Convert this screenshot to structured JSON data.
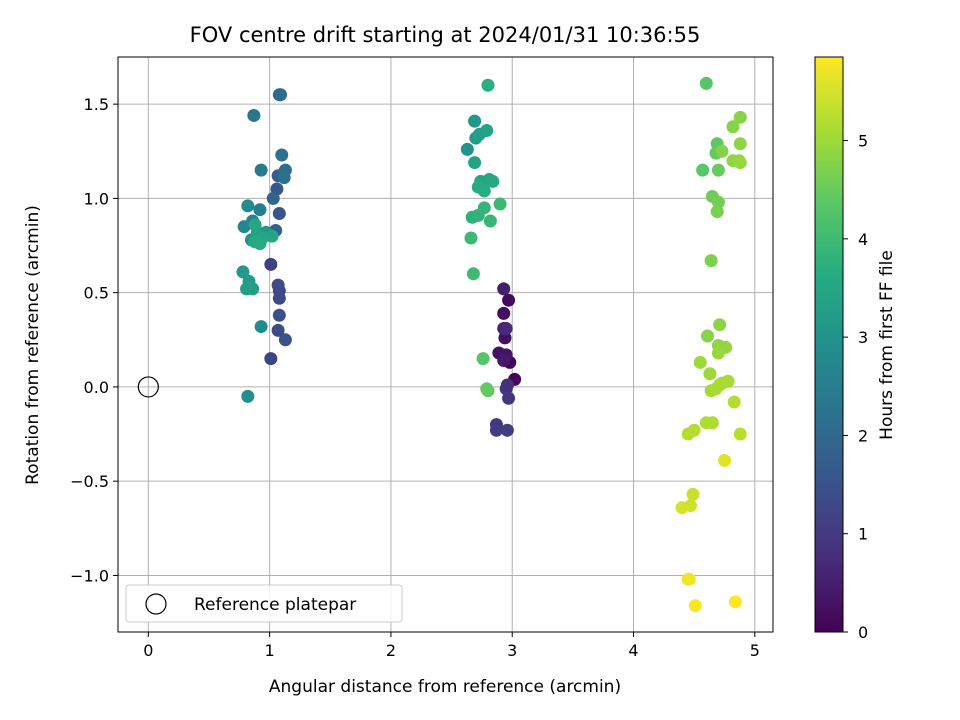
{
  "chart_data": {
    "type": "scatter",
    "title": "FOV centre drift starting at 2024/01/31 10:36:55",
    "xlabel": "Angular distance from reference (arcmin)",
    "ylabel": "Rotation from reference (arcmin)",
    "xlim": [
      -0.25,
      5.15
    ],
    "ylim": [
      -1.3,
      1.75
    ],
    "xticks": [
      0,
      1,
      2,
      3,
      4,
      5
    ],
    "yticks": [
      -1.0,
      -0.5,
      0.0,
      0.5,
      1.0,
      1.5
    ],
    "xtick_labels": [
      "0",
      "1",
      "2",
      "3",
      "4",
      "5"
    ],
    "ytick_labels": [
      "−1.0",
      "−0.5",
      "0.0",
      "0.5",
      "1.0",
      "1.5"
    ],
    "grid": true,
    "legend": {
      "position": "lower-left",
      "entries": [
        "Reference platepar"
      ]
    },
    "reference_point": {
      "x": 0,
      "y": 0
    },
    "colorbar": {
      "label": "Hours from first FF file",
      "range": [
        0,
        5.85
      ],
      "ticks": [
        0,
        1,
        2,
        3,
        4,
        5
      ],
      "tick_labels": [
        "0",
        "1",
        "2",
        "3",
        "4",
        "5"
      ],
      "colormap": "viridis"
    },
    "points": [
      {
        "x": 2.98,
        "y": 0.13,
        "h": 0.05
      },
      {
        "x": 3.02,
        "y": 0.04,
        "h": 0.1
      },
      {
        "x": 2.97,
        "y": 0.46,
        "h": 0.15
      },
      {
        "x": 2.93,
        "y": 0.39,
        "h": 0.2
      },
      {
        "x": 2.94,
        "y": 0.26,
        "h": 0.25
      },
      {
        "x": 2.89,
        "y": 0.18,
        "h": 0.3
      },
      {
        "x": 2.95,
        "y": 0.17,
        "h": 0.35
      },
      {
        "x": 2.93,
        "y": 0.14,
        "h": 0.4
      },
      {
        "x": 2.93,
        "y": 0.52,
        "h": 0.5
      },
      {
        "x": 2.93,
        "y": 0.31,
        "h": 0.6
      },
      {
        "x": 2.95,
        "y": 0.31,
        "h": 0.7
      },
      {
        "x": 2.96,
        "y": 0.01,
        "h": 0.8
      },
      {
        "x": 2.95,
        "y": -0.01,
        "h": 0.85
      },
      {
        "x": 2.97,
        "y": -0.06,
        "h": 0.9
      },
      {
        "x": 2.87,
        "y": -0.2,
        "h": 0.95
      },
      {
        "x": 2.87,
        "y": -0.23,
        "h": 1.0
      },
      {
        "x": 2.96,
        "y": -0.23,
        "h": 1.05
      },
      {
        "x": 1.01,
        "y": 0.65,
        "h": 1.15
      },
      {
        "x": 1.01,
        "y": 0.15,
        "h": 1.2
      },
      {
        "x": 1.08,
        "y": 0.51,
        "h": 1.25
      },
      {
        "x": 1.08,
        "y": 0.47,
        "h": 1.3
      },
      {
        "x": 1.07,
        "y": 0.54,
        "h": 1.35
      },
      {
        "x": 1.07,
        "y": 0.3,
        "h": 1.4
      },
      {
        "x": 1.08,
        "y": 0.38,
        "h": 1.45
      },
      {
        "x": 1.13,
        "y": 0.25,
        "h": 1.5
      },
      {
        "x": 1.08,
        "y": 0.92,
        "h": 1.55
      },
      {
        "x": 1.06,
        "y": 1.05,
        "h": 1.6
      },
      {
        "x": 1.07,
        "y": 1.12,
        "h": 1.7
      },
      {
        "x": 1.05,
        "y": 0.83,
        "h": 1.8
      },
      {
        "x": 1.03,
        "y": 1.0,
        "h": 1.9
      },
      {
        "x": 1.08,
        "y": 1.55,
        "h": 2.0
      },
      {
        "x": 1.09,
        "y": 1.55,
        "h": 2.05
      },
      {
        "x": 1.13,
        "y": 1.15,
        "h": 2.1
      },
      {
        "x": 1.12,
        "y": 1.11,
        "h": 2.15
      },
      {
        "x": 1.1,
        "y": 1.23,
        "h": 2.2
      },
      {
        "x": 0.87,
        "y": 1.44,
        "h": 2.3
      },
      {
        "x": 0.93,
        "y": 1.15,
        "h": 2.4
      },
      {
        "x": 0.92,
        "y": 0.94,
        "h": 2.5
      },
      {
        "x": 0.86,
        "y": 0.88,
        "h": 2.6
      },
      {
        "x": 0.79,
        "y": 0.85,
        "h": 2.7
      },
      {
        "x": 0.82,
        "y": 0.96,
        "h": 2.8
      },
      {
        "x": 0.93,
        "y": 0.32,
        "h": 2.85
      },
      {
        "x": 0.82,
        "y": -0.05,
        "h": 2.9
      },
      {
        "x": 0.85,
        "y": 0.78,
        "h": 3.0
      },
      {
        "x": 0.9,
        "y": 0.82,
        "h": 3.05
      },
      {
        "x": 0.97,
        "y": 0.82,
        "h": 3.1
      },
      {
        "x": 0.78,
        "y": 0.61,
        "h": 3.15
      },
      {
        "x": 0.83,
        "y": 0.56,
        "h": 3.2
      },
      {
        "x": 0.81,
        "y": 0.52,
        "h": 3.25
      },
      {
        "x": 0.86,
        "y": 0.52,
        "h": 3.3
      },
      {
        "x": 0.9,
        "y": 0.8,
        "h": 3.35
      },
      {
        "x": 1.02,
        "y": 0.8,
        "h": 3.4
      },
      {
        "x": 0.88,
        "y": 0.86,
        "h": 3.45
      },
      {
        "x": 0.94,
        "y": 0.79,
        "h": 3.5
      },
      {
        "x": 0.88,
        "y": 0.77,
        "h": 3.55
      },
      {
        "x": 0.92,
        "y": 0.76,
        "h": 3.6
      },
      {
        "x": 2.63,
        "y": 1.26,
        "h": 3.0
      },
      {
        "x": 2.69,
        "y": 1.41,
        "h": 3.1
      },
      {
        "x": 2.7,
        "y": 1.32,
        "h": 3.2
      },
      {
        "x": 2.73,
        "y": 1.34,
        "h": 3.3
      },
      {
        "x": 2.79,
        "y": 1.36,
        "h": 3.35
      },
      {
        "x": 2.69,
        "y": 1.19,
        "h": 3.4
      },
      {
        "x": 2.74,
        "y": 1.09,
        "h": 3.45
      },
      {
        "x": 2.81,
        "y": 1.1,
        "h": 3.5
      },
      {
        "x": 2.84,
        "y": 1.09,
        "h": 3.55
      },
      {
        "x": 2.72,
        "y": 1.06,
        "h": 3.6
      },
      {
        "x": 2.77,
        "y": 1.04,
        "h": 3.65
      },
      {
        "x": 2.8,
        "y": 1.6,
        "h": 3.7
      },
      {
        "x": 2.67,
        "y": 0.9,
        "h": 3.75
      },
      {
        "x": 2.72,
        "y": 0.91,
        "h": 3.8
      },
      {
        "x": 2.77,
        "y": 0.95,
        "h": 3.85
      },
      {
        "x": 2.82,
        "y": 0.88,
        "h": 3.9
      },
      {
        "x": 2.9,
        "y": 0.97,
        "h": 3.95
      },
      {
        "x": 2.66,
        "y": 0.79,
        "h": 3.95
      },
      {
        "x": 2.68,
        "y": 0.6,
        "h": 4.0
      },
      {
        "x": 2.76,
        "y": 0.15,
        "h": 4.3
      },
      {
        "x": 2.8,
        "y": -0.02,
        "h": 4.4
      },
      {
        "x": 2.79,
        "y": -0.01,
        "h": 4.45
      },
      {
        "x": 4.6,
        "y": 1.61,
        "h": 4.3
      },
      {
        "x": 4.57,
        "y": 1.15,
        "h": 4.35
      },
      {
        "x": 4.69,
        "y": 1.29,
        "h": 4.4
      },
      {
        "x": 4.68,
        "y": 1.24,
        "h": 4.45
      },
      {
        "x": 4.7,
        "y": 1.15,
        "h": 4.5
      },
      {
        "x": 4.65,
        "y": 1.01,
        "h": 4.55
      },
      {
        "x": 4.7,
        "y": 0.98,
        "h": 4.6
      },
      {
        "x": 4.69,
        "y": 0.93,
        "h": 4.65
      },
      {
        "x": 4.64,
        "y": 0.67,
        "h": 4.7
      },
      {
        "x": 4.73,
        "y": 1.25,
        "h": 4.75
      },
      {
        "x": 4.82,
        "y": 1.38,
        "h": 4.8
      },
      {
        "x": 4.88,
        "y": 1.43,
        "h": 4.8
      },
      {
        "x": 4.88,
        "y": 1.29,
        "h": 4.85
      },
      {
        "x": 4.82,
        "y": 1.2,
        "h": 4.85
      },
      {
        "x": 4.87,
        "y": 1.2,
        "h": 4.9
      },
      {
        "x": 4.88,
        "y": 1.19,
        "h": 4.95
      },
      {
        "x": 4.61,
        "y": 0.27,
        "h": 4.8
      },
      {
        "x": 4.71,
        "y": 0.33,
        "h": 4.85
      },
      {
        "x": 4.7,
        "y": 0.22,
        "h": 4.9
      },
      {
        "x": 4.76,
        "y": 0.21,
        "h": 4.9
      },
      {
        "x": 4.7,
        "y": 0.18,
        "h": 4.95
      },
      {
        "x": 4.55,
        "y": 0.13,
        "h": 5.0
      },
      {
        "x": 4.63,
        "y": 0.07,
        "h": 5.0
      },
      {
        "x": 4.71,
        "y": 0.01,
        "h": 5.05
      },
      {
        "x": 4.64,
        "y": -0.02,
        "h": 5.05
      },
      {
        "x": 4.73,
        "y": 0.02,
        "h": 5.1
      },
      {
        "x": 4.78,
        "y": 0.03,
        "h": 5.1
      },
      {
        "x": 4.68,
        "y": -0.01,
        "h": 5.1
      },
      {
        "x": 4.6,
        "y": -0.19,
        "h": 5.15
      },
      {
        "x": 4.65,
        "y": -0.19,
        "h": 5.15
      },
      {
        "x": 4.5,
        "y": -0.23,
        "h": 5.2
      },
      {
        "x": 4.45,
        "y": -0.25,
        "h": 5.2
      },
      {
        "x": 4.83,
        "y": -0.08,
        "h": 5.2
      },
      {
        "x": 4.88,
        "y": -0.25,
        "h": 5.25
      },
      {
        "x": 4.49,
        "y": -0.57,
        "h": 5.4
      },
      {
        "x": 4.47,
        "y": -0.63,
        "h": 5.45
      },
      {
        "x": 4.4,
        "y": -0.64,
        "h": 5.5
      },
      {
        "x": 4.75,
        "y": -0.39,
        "h": 5.6
      },
      {
        "x": 4.45,
        "y": -1.02,
        "h": 5.7
      },
      {
        "x": 4.46,
        "y": -1.02,
        "h": 5.75
      },
      {
        "x": 4.51,
        "y": -1.16,
        "h": 5.8
      },
      {
        "x": 4.84,
        "y": -1.14,
        "h": 5.85
      }
    ]
  }
}
